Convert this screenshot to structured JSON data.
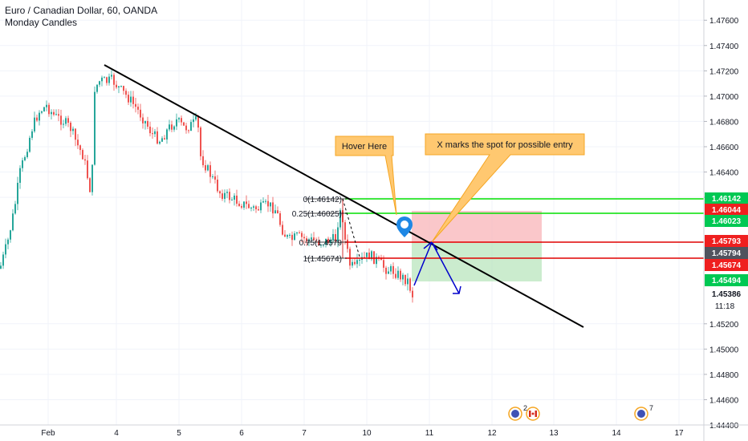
{
  "legend": {
    "symbol_line": "Euro / Canadian Dollar, 60, OANDA",
    "indicator_line": "Monday Candles"
  },
  "price_axis": {
    "ticks": [
      "1.47600",
      "1.47400",
      "1.47200",
      "1.47000",
      "1.46800",
      "1.46600",
      "1.46400",
      "1.46200",
      "1.45200",
      "1.45000",
      "1.44800",
      "1.44600",
      "1.44400"
    ],
    "range": [
      1.444,
      1.4776
    ],
    "countdown": "11:18"
  },
  "time_axis": {
    "labels": [
      "Feb",
      "4",
      "5",
      "6",
      "7",
      "10",
      "11",
      "12",
      "13",
      "14",
      "17"
    ]
  },
  "price_tags": [
    {
      "label": "1.46142",
      "price": 1.46142,
      "color": "#00c853"
    },
    {
      "label": "1.46044",
      "price": 1.46044,
      "color": "#ef1f1f"
    },
    {
      "label": "1.46023",
      "price": 1.46023,
      "color": "#00c853"
    },
    {
      "label": "1.45793",
      "price": 1.45793,
      "color": "#ef1f1f"
    },
    {
      "label": "1.45794",
      "price": 1.45794,
      "color": "#50535e"
    },
    {
      "label": "1.45674",
      "price": 1.45674,
      "color": "#ef1f1f"
    },
    {
      "label": "1.45494",
      "price": 1.45494,
      "color": "#00c853"
    },
    {
      "label": "1.45386",
      "price": 1.45386,
      "color": "#ffffff"
    }
  ],
  "fib_levels": [
    {
      "label": "0(1.46142)",
      "price": 1.46142
    },
    {
      "label": "0.25(1.46025)",
      "price": 1.46025
    },
    {
      "label": "0.75(1.4579",
      "price": 1.45793
    },
    {
      "label": "1(1.45674)",
      "price": 1.45674
    }
  ],
  "callouts": {
    "hover": "Hover Here",
    "entry": "X marks the spot for possible entry"
  },
  "events": [
    {
      "badge": "2"
    },
    {
      "badge": "7"
    }
  ],
  "colors": {
    "bull": "#26a69a",
    "bear": "#ef5350",
    "trendline": "#000000",
    "green_level": "#00e000",
    "red_level": "#e00000",
    "callout_fill": "#ffc870",
    "callout_border": "#f5a623",
    "marker": "#2196f3",
    "arrows": "#0000cc"
  }
}
